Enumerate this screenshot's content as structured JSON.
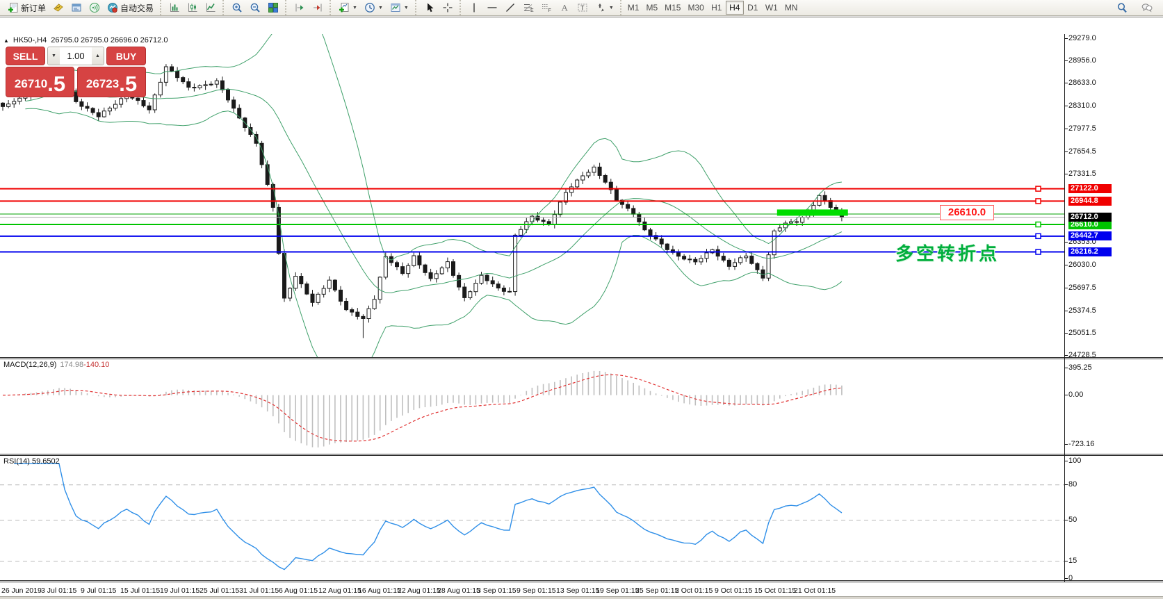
{
  "toolbar": {
    "groups": [
      {
        "items": [
          {
            "icon": "new-order-icon",
            "label": "新订单"
          },
          {
            "icon": "chart-ticket-icon"
          },
          {
            "icon": "terminal-icon"
          },
          {
            "icon": "signals-icon"
          },
          {
            "icon": "autotrading-icon",
            "label": "自动交易"
          }
        ]
      },
      {
        "items": [
          {
            "icon": "bars-chart-icon"
          },
          {
            "icon": "candlestick-chart-icon"
          },
          {
            "icon": "line-chart-icon"
          }
        ]
      },
      {
        "items": [
          {
            "icon": "zoom-in-icon"
          },
          {
            "icon": "zoom-out-icon"
          },
          {
            "icon": "tile-windows-icon"
          }
        ]
      },
      {
        "items": [
          {
            "icon": "auto-scroll-icon"
          },
          {
            "icon": "chart-shift-icon"
          }
        ]
      },
      {
        "items": [
          {
            "icon": "indicators-icon",
            "dropdown": true
          },
          {
            "icon": "periods-icon",
            "dropdown": true
          },
          {
            "icon": "templates-icon",
            "dropdown": true
          }
        ]
      },
      {
        "items": [
          {
            "icon": "cursor-icon"
          },
          {
            "icon": "crosshair-icon"
          }
        ]
      },
      {
        "items": [
          {
            "icon": "vertical-line-icon"
          },
          {
            "icon": "horizontal-line-icon"
          },
          {
            "icon": "trendline-icon"
          },
          {
            "icon": "fibonacci-icon"
          },
          {
            "icon": "fibo-grid-icon"
          },
          {
            "icon": "text-icon"
          },
          {
            "icon": "text-label-icon"
          },
          {
            "icon": "shapes-icon",
            "dropdown": true
          }
        ]
      }
    ],
    "timeframes": [
      "M1",
      "M5",
      "M15",
      "M30",
      "H1",
      "H4",
      "D1",
      "W1",
      "MN"
    ],
    "active_timeframe": "H4",
    "right_icons": [
      "search-icon",
      "chat-icon"
    ]
  },
  "chart": {
    "collapse_arrow": "▲",
    "title": "HK50-,H4",
    "ohlc_text": "26795.0 26795.0 26696.0 26712.0",
    "trade_panel": {
      "sell_label": "SELL",
      "buy_label": "BUY",
      "volume": "1.00",
      "sell_price_main": "26710",
      "sell_price_big": ".5",
      "buy_price_main": "26723",
      "buy_price_big": ".5"
    },
    "annotations": {
      "price_note": "26610.0",
      "turning_point_label": "多空转折点"
    }
  },
  "chart_data": {
    "type": "candlestick",
    "symbol": "HK50-",
    "timeframe": "H4",
    "candle_count": 150,
    "ohlc_last_bar": {
      "open": 26795.0,
      "high": 26795.0,
      "low": 26696.0,
      "close": 26712.0
    },
    "ylim": [
      24708,
      29339
    ],
    "close_path_anchors": [
      [
        0,
        28300
      ],
      [
        6,
        28520
      ],
      [
        10,
        28800
      ],
      [
        13,
        28380
      ],
      [
        17,
        28150
      ],
      [
        22,
        28480
      ],
      [
        26,
        28250
      ],
      [
        29,
        28880
      ],
      [
        33,
        28560
      ],
      [
        38,
        28660
      ],
      [
        41,
        28260
      ],
      [
        45,
        27780
      ],
      [
        48,
        26850
      ],
      [
        50,
        25550
      ],
      [
        52,
        25880
      ],
      [
        55,
        25480
      ],
      [
        58,
        25820
      ],
      [
        61,
        25380
      ],
      [
        64,
        25250
      ],
      [
        66,
        25560
      ],
      [
        68,
        26150
      ],
      [
        71,
        25900
      ],
      [
        73,
        26160
      ],
      [
        76,
        25820
      ],
      [
        79,
        26060
      ],
      [
        82,
        25560
      ],
      [
        85,
        25860
      ],
      [
        88,
        25700
      ],
      [
        90,
        25650
      ],
      [
        91,
        26450
      ],
      [
        94,
        26720
      ],
      [
        97,
        26620
      ],
      [
        100,
        27060
      ],
      [
        103,
        27320
      ],
      [
        105,
        27430
      ],
      [
        107,
        27210
      ],
      [
        109,
        26960
      ],
      [
        112,
        26780
      ],
      [
        114,
        26520
      ],
      [
        117,
        26320
      ],
      [
        120,
        26160
      ],
      [
        123,
        26060
      ],
      [
        126,
        26260
      ],
      [
        129,
        26010
      ],
      [
        132,
        26160
      ],
      [
        135,
        25860
      ],
      [
        137,
        26500
      ],
      [
        139,
        26620
      ],
      [
        141,
        26660
      ],
      [
        143,
        26780
      ],
      [
        145,
        27010
      ],
      [
        147,
        26860
      ],
      [
        149,
        26712
      ]
    ],
    "spike_low": {
      "index": 64,
      "extra": 240
    },
    "bands": {
      "period": 20,
      "deviation": 2,
      "color": "#3fa06a"
    },
    "y_axis_ticks": [
      {
        "label": "29279.0",
        "price": 29279.0
      },
      {
        "label": "28956.0",
        "price": 28956.0
      },
      {
        "label": "28633.0",
        "price": 28633.0
      },
      {
        "label": "28310.0",
        "price": 28310.0
      },
      {
        "label": "27977.5",
        "price": 27977.5
      },
      {
        "label": "27654.5",
        "price": 27654.5
      },
      {
        "label": "27331.5",
        "price": 27331.5
      },
      {
        "label": "26353.0",
        "price": 26353.0
      },
      {
        "label": "26030.0",
        "price": 26030.0
      },
      {
        "label": "25697.5",
        "price": 25697.5
      },
      {
        "label": "25374.5",
        "price": 25374.5
      },
      {
        "label": "25051.5",
        "price": 25051.5
      },
      {
        "label": "24728.5",
        "price": 24728.5
      }
    ],
    "h_lines": [
      {
        "label": "27122.0",
        "price": 27122.0,
        "color": "#f00000",
        "width": 2,
        "handle": true
      },
      {
        "label": "26944.8",
        "price": 26944.8,
        "color": "#f00000",
        "width": 2,
        "handle": true
      },
      {
        "label": null,
        "price": 26760.0,
        "color": "#00a000",
        "width": 1,
        "handle": false
      },
      {
        "label": "26610.0",
        "price": 26610.0,
        "color": "#00c400",
        "width": 2,
        "handle": true
      },
      {
        "label": "26442.7",
        "price": 26442.7,
        "color": "#0000ee",
        "width": 2,
        "handle": true
      },
      {
        "label": "26216.2",
        "price": 26216.2,
        "color": "#0000ee",
        "width": 2,
        "handle": true
      }
    ],
    "current_price_line": {
      "label": "26712.0",
      "price": 26712.0,
      "line_color": "#a8a8a8",
      "label_bg": "#000000"
    },
    "highlight_bar": {
      "from_candle": 138,
      "to_candle": 149.6,
      "price": 26780,
      "thickness": 9,
      "color": "#00dd00"
    },
    "x_axis_labels": [
      "26 Jun 2019",
      "3 Jul 01:15",
      "9 Jul 01:15",
      "15 Jul 01:15",
      "19 Jul 01:15",
      "25 Jul 01:15",
      "31 Jul 01:15",
      "6 Aug 01:15",
      "12 Aug 01:15",
      "16 Aug 01:15",
      "22 Aug 01:15",
      "28 Aug 01:15",
      "3 Sep 01:15",
      "9 Sep 01:15",
      "13 Sep 01:15",
      "19 Sep 01:15",
      "25 Sep 01:15",
      "2 Oct 01:15",
      "9 Oct 01:15",
      "15 Oct 01:15",
      "21 Oct 01:15"
    ],
    "indicators": {
      "macd": {
        "name": "MACD(12,26,9)",
        "value_main": "174.98",
        "value_signal": "-140.10",
        "histogram_color": "#bfbfbf",
        "signal_color": "#e03030",
        "axis_labels": [
          {
            "label": "395.25",
            "value": 395.25
          },
          {
            "label": "0.00",
            "value": 0.0
          },
          {
            "label": "-723.16",
            "value": -723.16
          }
        ],
        "ylim": [
          -861,
          527
        ]
      },
      "rsi": {
        "name": "RSI(14)",
        "value": "59.6502",
        "line_color": "#2f8fe8",
        "levels": [
          80,
          50,
          15
        ],
        "axis_labels": [
          {
            "label": "100",
            "value": 100
          },
          {
            "label": "80",
            "value": 80
          },
          {
            "label": "50",
            "value": 50
          },
          {
            "label": "15",
            "value": 15
          },
          {
            "label": "0",
            "value": 0
          }
        ],
        "ylim": [
          -1.2,
          104.7
        ]
      }
    }
  }
}
